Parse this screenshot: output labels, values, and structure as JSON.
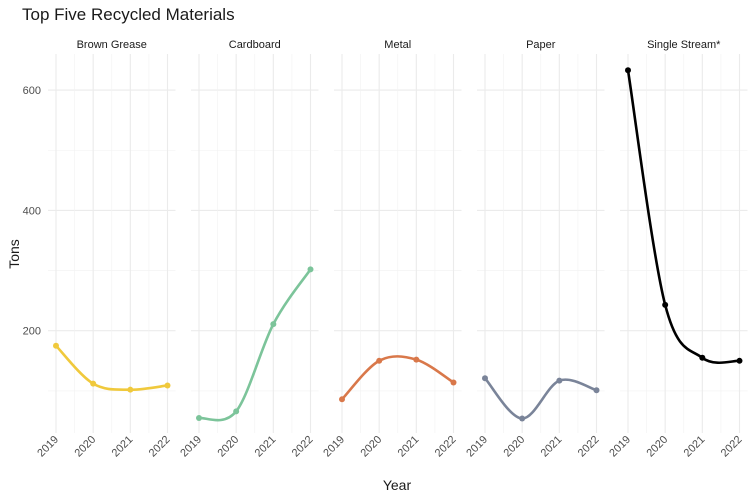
{
  "chart_data": {
    "type": "line",
    "title": "Top Five Recycled Materials",
    "xlabel": "Year",
    "ylabel": "Tons",
    "x": [
      "2019",
      "2020",
      "2021",
      "2022"
    ],
    "ylim": [
      30,
      660
    ],
    "yticks": [
      200,
      400,
      600
    ],
    "grid": true,
    "legend": "none",
    "series": [
      {
        "name": "Brown Grease",
        "color": "#F0C93C",
        "values": [
          175,
          112,
          102,
          109
        ]
      },
      {
        "name": "Cardboard",
        "color": "#7CC49A",
        "values": [
          55,
          66,
          211,
          302
        ]
      },
      {
        "name": "Metal",
        "color": "#D9784A",
        "values": [
          86,
          150,
          152,
          114
        ]
      },
      {
        "name": "Paper",
        "color": "#7A8499",
        "values": [
          121,
          54,
          117,
          101
        ]
      },
      {
        "name": "Single Stream*",
        "color": "#000000",
        "values": [
          633,
          243,
          155,
          150
        ]
      }
    ]
  }
}
